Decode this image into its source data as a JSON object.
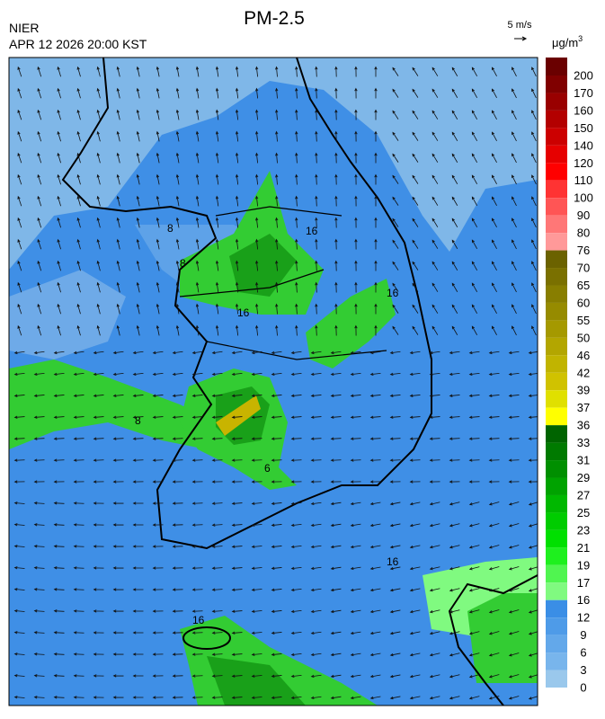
{
  "title": "PM-2.5",
  "agency": "NIER",
  "datetime": "APR 12 2026 20:00 KST",
  "wind_scale": "5 m/s",
  "unit": "μg/m",
  "unit_exponent": "3",
  "colorbar": {
    "levels": [
      200,
      170,
      160,
      150,
      140,
      120,
      110,
      100,
      90,
      80,
      76,
      70,
      65,
      60,
      55,
      50,
      46,
      42,
      39,
      37,
      36,
      33,
      31,
      29,
      27,
      25,
      23,
      21,
      19,
      17,
      16,
      12,
      9,
      6,
      3,
      0
    ],
    "colors": [
      "#6a0000",
      "#800000",
      "#990000",
      "#b30000",
      "#cc0000",
      "#e60000",
      "#ff0000",
      "#ff3333",
      "#ff5555",
      "#ff7777",
      "#ff9999",
      "#6b6200",
      "#7a7000",
      "#887e00",
      "#968b00",
      "#a59900",
      "#b3a600",
      "#c1b400",
      "#d0c200",
      "#e0e000",
      "#ffff00",
      "#006400",
      "#007a00",
      "#008f00",
      "#00a300",
      "#00b800",
      "#00cc00",
      "#00e000",
      "#1ef01e",
      "#50f550",
      "#80fa80",
      "#3a8ee6",
      "#4e9be8",
      "#63a8ea",
      "#78b5ec",
      "#9ac8ec"
    ]
  },
  "contour_labels": [
    16,
    8,
    8,
    16,
    16,
    8,
    6,
    16,
    16
  ]
}
